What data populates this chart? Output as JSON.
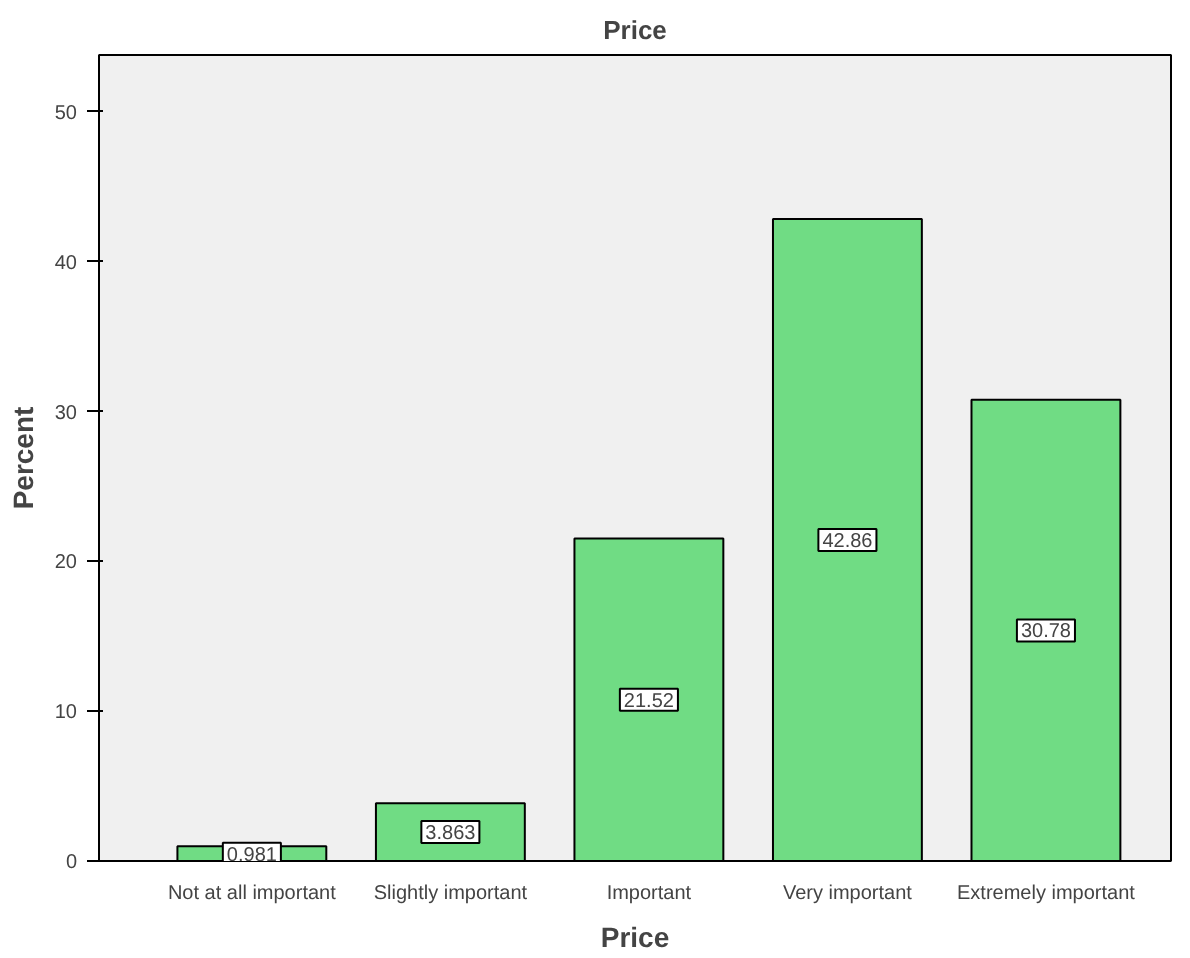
{
  "chart_data": {
    "type": "bar",
    "title": "Price",
    "xlabel": "Price",
    "ylabel": "Percent",
    "categories": [
      "Not at all important",
      "Slightly important",
      "Important",
      "Very important",
      "Extremely important"
    ],
    "values": [
      0.981,
      3.863,
      21.52,
      42.86,
      30.78
    ],
    "color": "#70dc84",
    "ylim": [
      0,
      53.8
    ],
    "yticks": [
      0,
      10,
      20,
      30,
      40,
      50
    ],
    "grid": false,
    "data_labels": true
  }
}
